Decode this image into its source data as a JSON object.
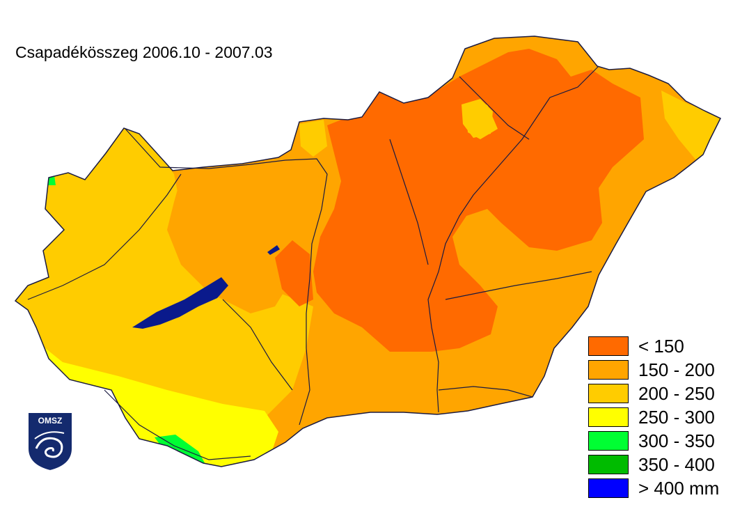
{
  "title": "Csapadékösszeg 2006.10 - 2007.03",
  "legend": [
    {
      "label": "< 150",
      "color": "#ff6a00"
    },
    {
      "label": "150 - 200",
      "color": "#ffa500"
    },
    {
      "label": "200 - 250",
      "color": "#ffcc00"
    },
    {
      "label": "250 - 300",
      "color": "#ffff00"
    },
    {
      "label": "300 - 350",
      "color": "#00ff33"
    },
    {
      "label": "350 - 400",
      "color": "#00bb00"
    },
    {
      "label": "> 400 mm",
      "color": "#0000ff"
    }
  ],
  "logo": {
    "text": "OMSZ",
    "color": "#142a6e"
  },
  "lake_color": "#0a1a8c",
  "river_color": "#1a1a40"
}
